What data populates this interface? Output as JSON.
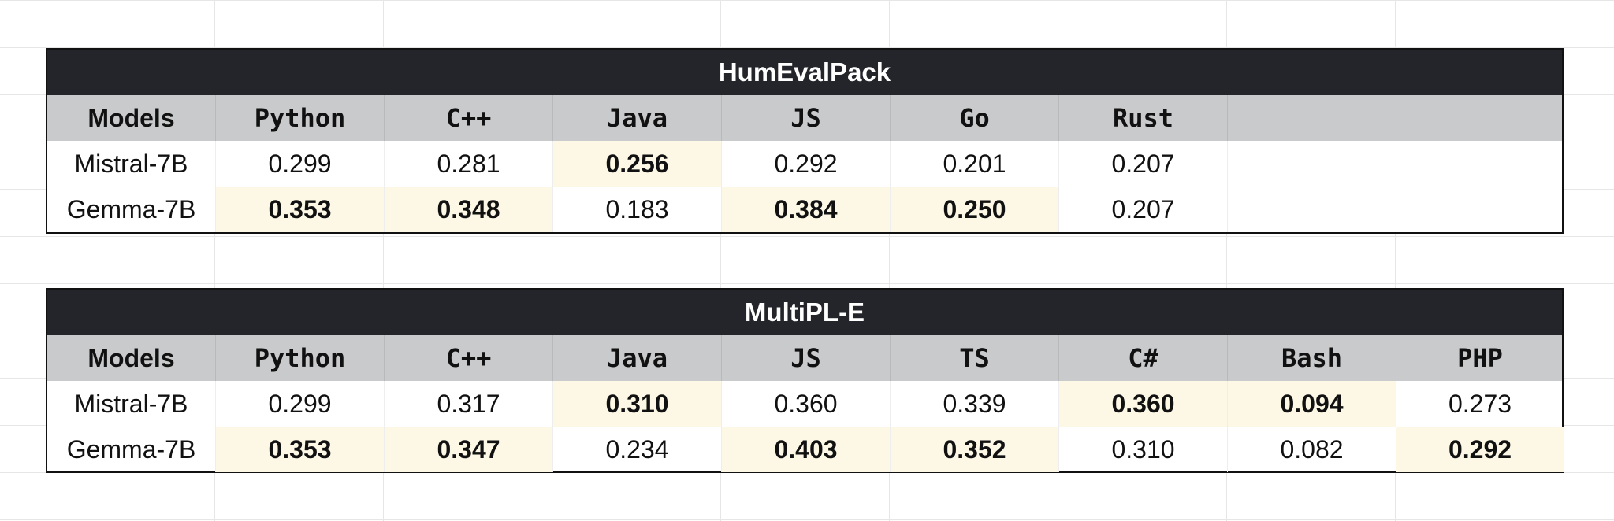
{
  "tables": [
    {
      "title": "HumEvalPack",
      "headers": [
        "Models",
        "Python",
        "C++",
        "Java",
        "JS",
        "Go",
        "Rust",
        "",
        ""
      ],
      "rows": [
        {
          "cells": [
            "Mistral-7B",
            "0.299",
            "0.281",
            "0.256",
            "0.292",
            "0.201",
            "0.207",
            "",
            ""
          ],
          "best": [
            false,
            false,
            false,
            true,
            false,
            false,
            false,
            false,
            false
          ]
        },
        {
          "cells": [
            "Gemma-7B",
            "0.353",
            "0.348",
            "0.183",
            "0.384",
            "0.250",
            "0.207",
            "",
            ""
          ],
          "best": [
            false,
            true,
            true,
            false,
            true,
            true,
            false,
            false,
            false
          ]
        }
      ]
    },
    {
      "title": "MultiPL-E",
      "headers": [
        "Models",
        "Python",
        "C++",
        "Java",
        "JS",
        "TS",
        "C#",
        "Bash",
        "PHP"
      ],
      "rows": [
        {
          "cells": [
            "Mistral-7B",
            "0.299",
            "0.317",
            "0.310",
            "0.360",
            "0.339",
            "0.360",
            "0.094",
            "0.273"
          ],
          "best": [
            false,
            false,
            false,
            true,
            false,
            false,
            true,
            true,
            false
          ]
        },
        {
          "cells": [
            "Gemma-7B",
            "0.353",
            "0.347",
            "0.234",
            "0.403",
            "0.352",
            "0.310",
            "0.082",
            "0.292"
          ],
          "best": [
            false,
            true,
            true,
            false,
            true,
            true,
            false,
            false,
            true
          ]
        }
      ]
    }
  ],
  "colors": {
    "title_bg": "#24252a",
    "header_bg": "#c9cacc",
    "best_bg": "#fdf8e6",
    "grid_line": "#e6e6e6"
  }
}
